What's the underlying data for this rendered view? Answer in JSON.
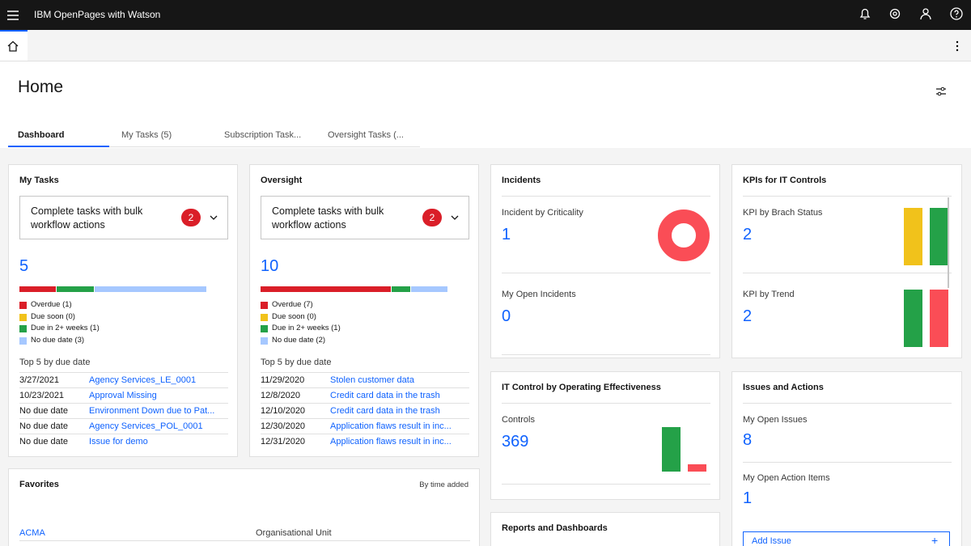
{
  "header": {
    "product": "IBM OpenPages with Watson"
  },
  "page": {
    "title": "Home"
  },
  "tabs": [
    "Dashboard",
    "My Tasks (5)",
    "Subscription Task...",
    "Oversight Tasks (..."
  ],
  "my_tasks": {
    "title": "My Tasks",
    "banner": "Complete tasks with bulk workflow actions",
    "badge": 2,
    "total": 5,
    "segments": [
      {
        "label": "Overdue (1)",
        "value": 1,
        "color": "#da1e28"
      },
      {
        "label": "Due soon (0)",
        "value": 0,
        "color": "#f1c21b"
      },
      {
        "label": "Due in 2+ weeks (1)",
        "value": 1,
        "color": "#24a148"
      },
      {
        "label": "No due date (3)",
        "value": 3,
        "color": "#a6c8ff"
      }
    ],
    "top_label": "Top 5 by due date",
    "rows": [
      [
        "3/27/2021",
        "Agency Services_LE_0001"
      ],
      [
        "10/23/2021",
        "Approval Missing"
      ],
      [
        "No due date",
        "Environment Down due to Pat..."
      ],
      [
        "No due date",
        "Agency Services_POL_0001"
      ],
      [
        "No due date",
        "Issue for demo"
      ]
    ]
  },
  "oversight": {
    "title": "Oversight",
    "banner": "Complete tasks with bulk workflow actions",
    "badge": 2,
    "total": 10,
    "segments": [
      {
        "label": "Overdue (7)",
        "value": 7,
        "color": "#da1e28"
      },
      {
        "label": "Due soon (0)",
        "value": 0,
        "color": "#f1c21b"
      },
      {
        "label": "Due in 2+ weeks (1)",
        "value": 1,
        "color": "#24a148"
      },
      {
        "label": "No due date (2)",
        "value": 2,
        "color": "#a6c8ff"
      }
    ],
    "top_label": "Top 5 by due date",
    "rows": [
      [
        "11/29/2020",
        "Stolen customer data"
      ],
      [
        "12/8/2020",
        "Credit card data in the trash"
      ],
      [
        "12/10/2020",
        "Credit card data in the trash"
      ],
      [
        "12/30/2020",
        "Application flaws result in inc..."
      ],
      [
        "12/31/2020",
        "Application flaws result in inc..."
      ]
    ]
  },
  "incidents": {
    "title": "Incidents",
    "donut_color": "#fa4d56",
    "metrics": [
      {
        "label": "Incident by Criticality",
        "value": 1
      },
      {
        "label": "My Open Incidents",
        "value": 0
      }
    ]
  },
  "kpis": {
    "title": "KPIs for IT Controls",
    "metrics": [
      {
        "label": "KPI by Brach Status",
        "value": 2,
        "bars": [
          {
            "color": "#f1c21b",
            "value": 1
          },
          {
            "color": "#24a148",
            "value": 1
          }
        ]
      },
      {
        "label": "KPI by Trend",
        "value": 2,
        "bars": [
          {
            "color": "#24a148",
            "value": 1
          },
          {
            "color": "#fa4d56",
            "value": 1
          }
        ]
      }
    ]
  },
  "it_control": {
    "title": "IT Control by Operating Effectiveness",
    "label": "Controls",
    "value": 369,
    "bars": [
      {
        "color": "#24a148",
        "value": 6
      },
      {
        "color": "#fa4d56",
        "value": 1
      }
    ]
  },
  "issues": {
    "title": "Issues and Actions",
    "metrics": [
      {
        "label": "My Open Issues",
        "value": 8
      },
      {
        "label": "My Open Action Items",
        "value": 1
      }
    ],
    "button": "Add Issue",
    "button_icon": "+"
  },
  "reports": {
    "title": "Reports and Dashboards"
  },
  "favorites": {
    "title": "Favorites",
    "sort": "By time added",
    "rows": [
      [
        "ACMA",
        "Organisational Unit"
      ]
    ]
  }
}
